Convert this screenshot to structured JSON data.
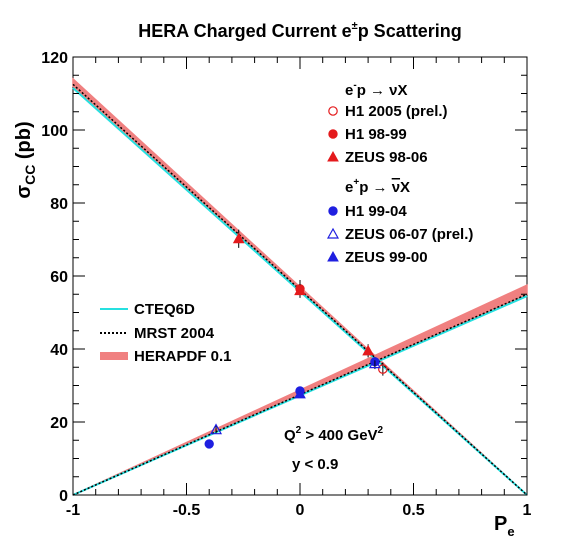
{
  "chart_data": {
    "type": "scatter",
    "title_parts": [
      "HERA Charged Current e",
      "±",
      "p Scattering"
    ],
    "xlabel_main": "P",
    "xlabel_sub": "e",
    "ylabel_main": "σ",
    "ylabel_sub": "CC",
    "ylabel_unit": " (pb)",
    "xlim": [
      -1,
      1
    ],
    "ylim": [
      0,
      120
    ],
    "xticks": [
      "-1",
      "-0.5",
      "0",
      "0.5",
      "1"
    ],
    "yticks": [
      "0",
      "20",
      "40",
      "60",
      "80",
      "100",
      "120"
    ],
    "x_tick_values": [
      -1,
      -0.5,
      0,
      0.5,
      1
    ],
    "y_tick_values": [
      0,
      20,
      40,
      60,
      80,
      100,
      120
    ],
    "grid": false,
    "annotations": {
      "q2_main": "Q",
      "q2_sup": "2",
      "q2_rest": " > 400 GeV",
      "q2_sup2": "2",
      "y_cut": "y < 0.9"
    },
    "group_headers": {
      "electron": {
        "a": "e",
        "a_sup": "-",
        "b": "p → νX"
      },
      "positron": {
        "a": "e",
        "a_sup": "+",
        "b": "p → ",
        "nubar": "ν",
        "c": "X"
      }
    },
    "series": [
      {
        "name": "H1 2005 (prel.)",
        "marker": "open-circle",
        "color": "#e41a1c",
        "points": [
          {
            "x": 0.365,
            "y": 34.5,
            "err": 1.8
          }
        ]
      },
      {
        "name": "H1 98-99",
        "marker": "filled-circle",
        "color": "#e41a1c",
        "points": [
          {
            "x": 0.0,
            "y": 56.5,
            "err": 2.4
          }
        ]
      },
      {
        "name": "ZEUS 98-06",
        "marker": "filled-triangle",
        "color": "#e41a1c",
        "points": [
          {
            "x": -0.27,
            "y": 70.2,
            "err": 2.5
          },
          {
            "x": 0.0,
            "y": 56.0,
            "err": 2.0
          },
          {
            "x": 0.3,
            "y": 39.5,
            "err": 1.8
          }
        ]
      },
      {
        "name": "H1 99-04",
        "marker": "filled-circle",
        "color": "#1f1fe0",
        "points": [
          {
            "x": -0.4,
            "y": 14.0,
            "err": 0.9
          },
          {
            "x": 0.0,
            "y": 28.5,
            "err": 0.9
          },
          {
            "x": 0.33,
            "y": 36.5,
            "err": 1.3
          }
        ]
      },
      {
        "name": "ZEUS 06-07 (prel.)",
        "marker": "open-triangle",
        "color": "#1f1fe0",
        "points": [
          {
            "x": -0.37,
            "y": 17.9,
            "err": 1.0
          },
          {
            "x": 0.33,
            "y": 36.0,
            "err": 1.5
          }
        ]
      },
      {
        "name": "ZEUS 99-00",
        "marker": "filled-triangle",
        "color": "#1f1fe0",
        "points": [
          {
            "x": 0.0,
            "y": 27.7,
            "err": 1.0
          }
        ]
      }
    ],
    "theory": [
      {
        "name": "CTEQ6D",
        "style": "solid",
        "color": "#26e0e0",
        "electron": [
          [
            -1,
            111.5
          ],
          [
            1,
            0
          ]
        ],
        "positron": [
          [
            -1,
            0
          ],
          [
            1,
            54.5
          ]
        ]
      },
      {
        "name": "MRST 2004",
        "style": "dotted",
        "color": "#000000",
        "electron": [
          [
            -1,
            112.5
          ],
          [
            1,
            0
          ]
        ],
        "positron": [
          [
            -1,
            0
          ],
          [
            1,
            55.0
          ]
        ]
      },
      {
        "name": "HERAPDF 0.1",
        "style": "band",
        "color": "#f08080",
        "electron": {
          "low": [
            [
              -1,
              112.0
            ],
            [
              1,
              0
            ]
          ],
          "high": [
            [
              -1,
              114.0
            ],
            [
              1,
              0
            ]
          ]
        },
        "positron": {
          "low": [
            [
              -1,
              0
            ],
            [
              1,
              55.0
            ]
          ],
          "high": [
            [
              -1,
              0
            ],
            [
              1,
              57.5
            ]
          ]
        }
      }
    ],
    "legend_placement": "left-middle"
  }
}
